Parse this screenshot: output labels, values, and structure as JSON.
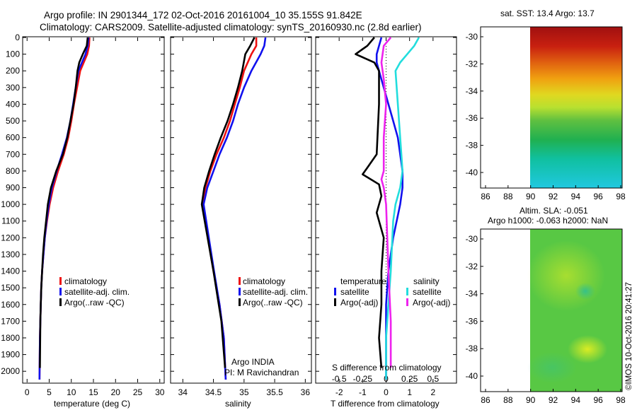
{
  "title": {
    "line1": "Argo profile: IN 2901344_172 02-Oct-2016 20161004_10 35.155S 91.842E",
    "line2": "Climatology: CARS2009. Satellite-adjusted climatology: synTS_20160930.nc (2.8d earlier)"
  },
  "colors": {
    "climatology": "#ee1111",
    "satellite_adj": "#1111ee",
    "argo": "#000000",
    "satellite_diff": "#1111ee",
    "salinity_satellite": "#22dddd",
    "salinity_argo": "#ee22ee"
  },
  "legend": {
    "climatology": "climatology",
    "satellite": "satellite-adj. clim.",
    "argo": "Argo(..raw -QC)",
    "temperature": "temperature",
    "salinity": "salinity",
    "diff_satellite": "satellite",
    "diff_argo": "Argo(-adj)"
  },
  "source": {
    "line1": "Argo INDIA",
    "line2": "PI: M Ravichandran"
  },
  "maps": {
    "sst_title": "sat. SST: 13.4 Argo: 13.7",
    "sla_title1": "Altim. SLA: -0.051",
    "sla_title2": "Argo h1000: -0.063 h2000: NaN",
    "stamp": "©IMOS 10-Oct-2016 20:41:27",
    "x_ticks": [
      "86",
      "88",
      "90",
      "92",
      "94",
      "96",
      "98"
    ],
    "y_ticks": [
      "-30",
      "-32",
      "-34",
      "-36",
      "-38",
      "-40"
    ]
  },
  "chart_data": [
    {
      "type": "line",
      "xlabel": "temperature (deg C)",
      "ylabel": "",
      "xlim": [
        -1,
        31
      ],
      "ylim": [
        2100,
        0
      ],
      "x_ticks": [
        "0",
        "5",
        "10",
        "15",
        "20",
        "25",
        "30"
      ],
      "y_ticks": [
        "0",
        "100",
        "200",
        "300",
        "400",
        "500",
        "600",
        "700",
        "800",
        "900",
        "1000",
        "1100",
        "1200",
        "1300",
        "1400",
        "1500",
        "1600",
        "1700",
        "1800",
        "1900",
        "2000"
      ],
      "series": [
        {
          "name": "climatology",
          "x": [
            14.1,
            14.0,
            13.6,
            12.8,
            12.0,
            11.3,
            10.6,
            10.0,
            9.3,
            8.3,
            7.0,
            5.9,
            5.1,
            4.5,
            4.0,
            3.7,
            3.4,
            3.2,
            3.1,
            3.0,
            2.9,
            2.8
          ],
          "y": [
            0,
            50,
            100,
            150,
            200,
            300,
            400,
            500,
            600,
            700,
            800,
            900,
            1000,
            1100,
            1200,
            1300,
            1400,
            1500,
            1600,
            1700,
            1800,
            2050
          ]
        },
        {
          "name": "satellite-adj. clim.",
          "x": [
            13.9,
            13.7,
            13.2,
            12.4,
            11.6,
            11.0,
            10.4,
            9.8,
            9.0,
            7.9,
            6.7,
            5.6,
            4.9,
            4.4,
            4.0,
            3.7,
            3.4,
            3.2,
            3.1,
            3.0,
            2.9,
            2.8
          ],
          "y": [
            0,
            50,
            100,
            150,
            200,
            300,
            400,
            500,
            600,
            700,
            800,
            900,
            1000,
            1100,
            1200,
            1300,
            1400,
            1500,
            1600,
            1700,
            1800,
            2050
          ]
        },
        {
          "name": "Argo(..raw -QC)",
          "x": [
            13.7,
            13.5,
            12.6,
            11.8,
            11.4,
            11.0,
            10.5,
            9.8,
            9.1,
            8.1,
            6.6,
            5.4,
            4.7,
            4.3,
            3.9,
            3.6,
            3.4,
            3.2,
            3.1,
            3.0,
            2.9
          ],
          "y": [
            0,
            50,
            100,
            150,
            200,
            300,
            400,
            500,
            600,
            700,
            800,
            900,
            1000,
            1100,
            1200,
            1300,
            1400,
            1500,
            1600,
            1700,
            1980
          ]
        }
      ]
    },
    {
      "type": "line",
      "xlabel": "salinity",
      "ylabel": "",
      "xlim": [
        33.8,
        36.1
      ],
      "ylim": [
        2100,
        0
      ],
      "x_ticks": [
        "34",
        "34.5",
        "35",
        "35.5",
        "36"
      ],
      "series": [
        {
          "name": "climatology",
          "x": [
            35.2,
            35.2,
            35.12,
            35.0,
            34.93,
            34.85,
            34.77,
            34.67,
            34.55,
            34.45,
            34.37,
            34.32,
            34.5,
            34.6,
            34.67,
            34.7
          ],
          "y": [
            0,
            50,
            100,
            200,
            300,
            400,
            500,
            600,
            700,
            800,
            900,
            1000,
            1400,
            1600,
            1800,
            2050
          ]
        },
        {
          "name": "satellite-adj. clim.",
          "x": [
            35.35,
            35.33,
            35.27,
            35.12,
            35.0,
            34.9,
            34.82,
            34.72,
            34.6,
            34.5,
            34.4,
            34.34,
            34.51,
            34.6,
            34.67,
            34.7
          ],
          "y": [
            0,
            50,
            100,
            200,
            300,
            400,
            500,
            600,
            700,
            800,
            900,
            1000,
            1400,
            1600,
            1800,
            2050
          ]
        },
        {
          "name": "Argo(..raw -QC)",
          "x": [
            35.17,
            35.1,
            35.02,
            34.97,
            34.9,
            34.82,
            34.73,
            34.62,
            34.52,
            34.43,
            34.35,
            34.31,
            34.5,
            34.63,
            34.69
          ],
          "y": [
            0,
            50,
            100,
            200,
            300,
            400,
            500,
            600,
            700,
            800,
            900,
            1000,
            1400,
            1700,
            1980
          ]
        }
      ]
    },
    {
      "type": "line",
      "xlabel": "T difference from climatology",
      "top_label": "S difference from climatology",
      "xlim": [
        -3,
        3
      ],
      "ylim": [
        2100,
        0
      ],
      "x_ticks": [
        "-2",
        "-1",
        "0",
        "1",
        "2"
      ],
      "top_ticks": [
        "-0.5",
        "-0.25",
        "0",
        "0.25",
        "0.5"
      ],
      "series": [
        {
          "name": "temperature satellite",
          "x": [
            -0.2,
            -0.3,
            -0.4,
            -0.4,
            -0.3,
            0.1,
            0.3,
            0.5,
            0.6,
            0.7,
            0.7,
            0.6,
            0.3,
            0.1,
            0.0,
            0.0,
            0.0
          ],
          "y": [
            0,
            50,
            100,
            150,
            200,
            400,
            500,
            600,
            700,
            800,
            900,
            1000,
            1200,
            1400,
            1600,
            1800,
            2050
          ]
        },
        {
          "name": "temperature Argo(-adj)",
          "x": [
            -0.5,
            -0.8,
            -1.0,
            -1.3,
            -0.5,
            -0.3,
            -0.3,
            -0.4,
            -0.8,
            -1.0,
            -0.3,
            -0.2,
            -0.4,
            -0.1,
            -0.2,
            -0.2,
            -0.3,
            -0.2
          ],
          "y": [
            0,
            50,
            70,
            100,
            150,
            200,
            400,
            700,
            780,
            820,
            880,
            950,
            1050,
            1200,
            1400,
            1600,
            1800,
            1980
          ]
        },
        {
          "name": "salinity satellite",
          "x": [
            1.4,
            1.2,
            0.9,
            0.6,
            0.4,
            0.5,
            0.6,
            0.7,
            0.6,
            0.4,
            0.3,
            0.2,
            0.1,
            0.0,
            0.0
          ],
          "y": [
            0,
            50,
            100,
            150,
            200,
            400,
            600,
            800,
            900,
            1000,
            1100,
            1400,
            1600,
            1800,
            2050
          ]
        },
        {
          "name": "salinity Argo(-adj)",
          "x": [
            0.2,
            -0.1,
            -0.2,
            -0.1,
            0.0,
            -0.1,
            -0.1,
            -0.2,
            -0.1,
            0.0,
            0.1,
            0.2,
            0.2
          ],
          "y": [
            0,
            50,
            150,
            250,
            400,
            600,
            800,
            850,
            900,
            1000,
            1400,
            1700,
            1980
          ]
        }
      ]
    }
  ]
}
